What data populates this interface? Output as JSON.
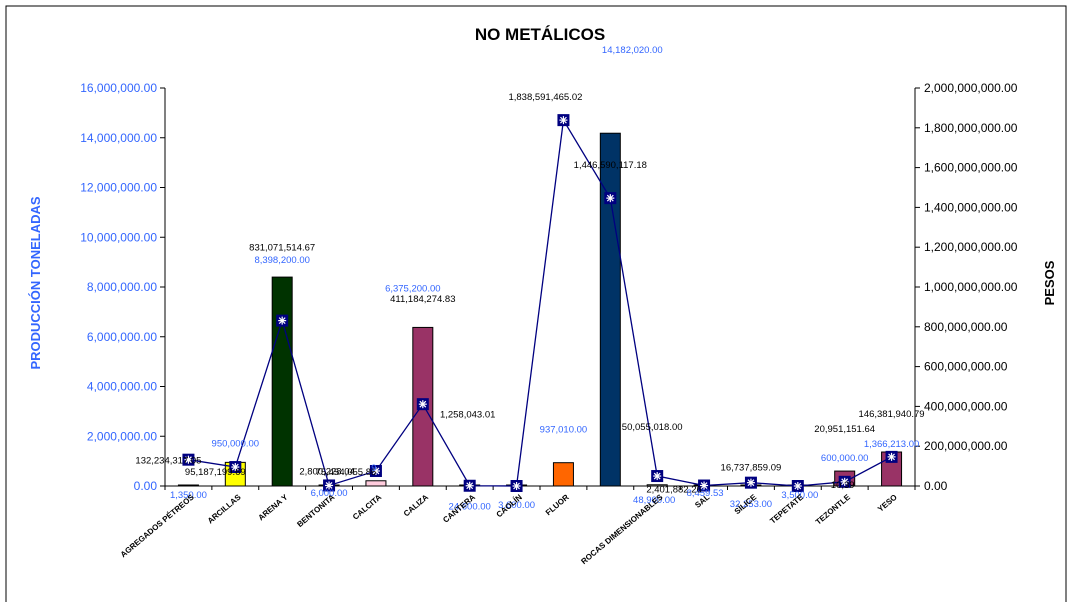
{
  "chart_data": {
    "type": "bar",
    "title": "NO METÁLICOS",
    "ylabel": "PRODUCCIÓN TONELADAS",
    "y2label": "PESOS",
    "ylim": [
      0,
      16000000
    ],
    "y2lim": [
      0,
      2000000000
    ],
    "left_ticks": [
      "0.00",
      "2,000,000.00",
      "4,000,000.00",
      "6,000,000.00",
      "8,000,000.00",
      "10,000,000.00",
      "12,000,000.00",
      "14,000,000.00",
      "16,000,000.00"
    ],
    "right_ticks": [
      "0.00",
      "200,000,000.00",
      "400,000,000.00",
      "600,000,000.00",
      "800,000,000.00",
      "1,000,000,000.00",
      "1,200,000,000.00",
      "1,400,000,000.00",
      "1,600,000,000.00",
      "1,800,000,000.00",
      "2,000,000,000.00"
    ],
    "grid": false,
    "categories": [
      "AGREGADOS PÉTREOS",
      "ARCILLAS",
      "ARENA Y GRAVA",
      "BENTONITA",
      "CALCITA",
      "CALIZA",
      "CANTERA",
      "CAOLÍN",
      "FLUORITA",
      "",
      "ROCAS DIMENSIONABLES",
      "SAL",
      "SÍLICE",
      "TEPETATE",
      "TEZONTLE",
      "YESO"
    ],
    "category_labels_displayed": [
      "AGREGADOS PÉTREOS",
      "ARCILLAS",
      "ARENA Y",
      "BENTONITA",
      "CALCITA",
      "CALIZA",
      "CANTERA",
      "CAOLÍN",
      "FLUOR",
      "",
      "ROCAS DIMENSIONABLES",
      "SAL",
      "SÍLICE",
      "TEPETATE",
      "TEZONTLE",
      "YESO"
    ],
    "series": [
      {
        "name": "",
        "kind": "bar",
        "axis": "left",
        "values": [
          1350,
          950000,
          8398200,
          6000,
          210000,
          6375200,
          24600,
          3600,
          937010,
          14182020,
          48900,
          8459.53,
          32253,
          3500,
          600000,
          1366213
        ],
        "labels": [
          "1,350.00",
          "950,000.00",
          "8,398,200.00",
          "6,000.00",
          "",
          "6,375,200.00",
          "24,600.00",
          "3,600.00",
          "937,010.00",
          "14,182,020.00",
          "48,900.00",
          "8,459.53",
          "32,253.00",
          "3,500.00",
          "600,000.00",
          "1,366,213.00"
        ]
      },
      {
        "name": "",
        "kind": "line",
        "axis": "right",
        "values": [
          132234317.05,
          95187199.69,
          831071514.67,
          2800228.04,
          75454055.86,
          411184274.83,
          1258043.01,
          3600,
          1838591465.02,
          1446590117.18,
          50055018.0,
          2401882.26,
          16737859.09,
          2000,
          20951151.64,
          146381940.79
        ],
        "labels": [
          "132,234,317.05",
          "95,187,199.69",
          "831,071,514.67",
          "2,800,228.04",
          "75,454,055.86",
          "411,184,274.83",
          "1,258,043.01",
          "",
          "1,838,591,465.02",
          "1,446,590,117.18",
          "50,055,018.00",
          "2,401,882.26",
          "16,737,859.09",
          "",
          "20,951,151.64",
          "146,381,940.79"
        ]
      }
    ],
    "bar_colors": [
      "#ffffff",
      "#ffff00",
      "#003300",
      "#ffffff",
      "#ffccdd",
      "#993366",
      "#ffffff",
      "#ffffff",
      "#ff6600",
      "#003366",
      "#ffffff",
      "#ffffff",
      "#ffffff",
      "#ffffff",
      "#993366",
      "#993366"
    ],
    "line_color": "#000080",
    "partial_labels": [
      "9",
      "10,39"
    ]
  }
}
